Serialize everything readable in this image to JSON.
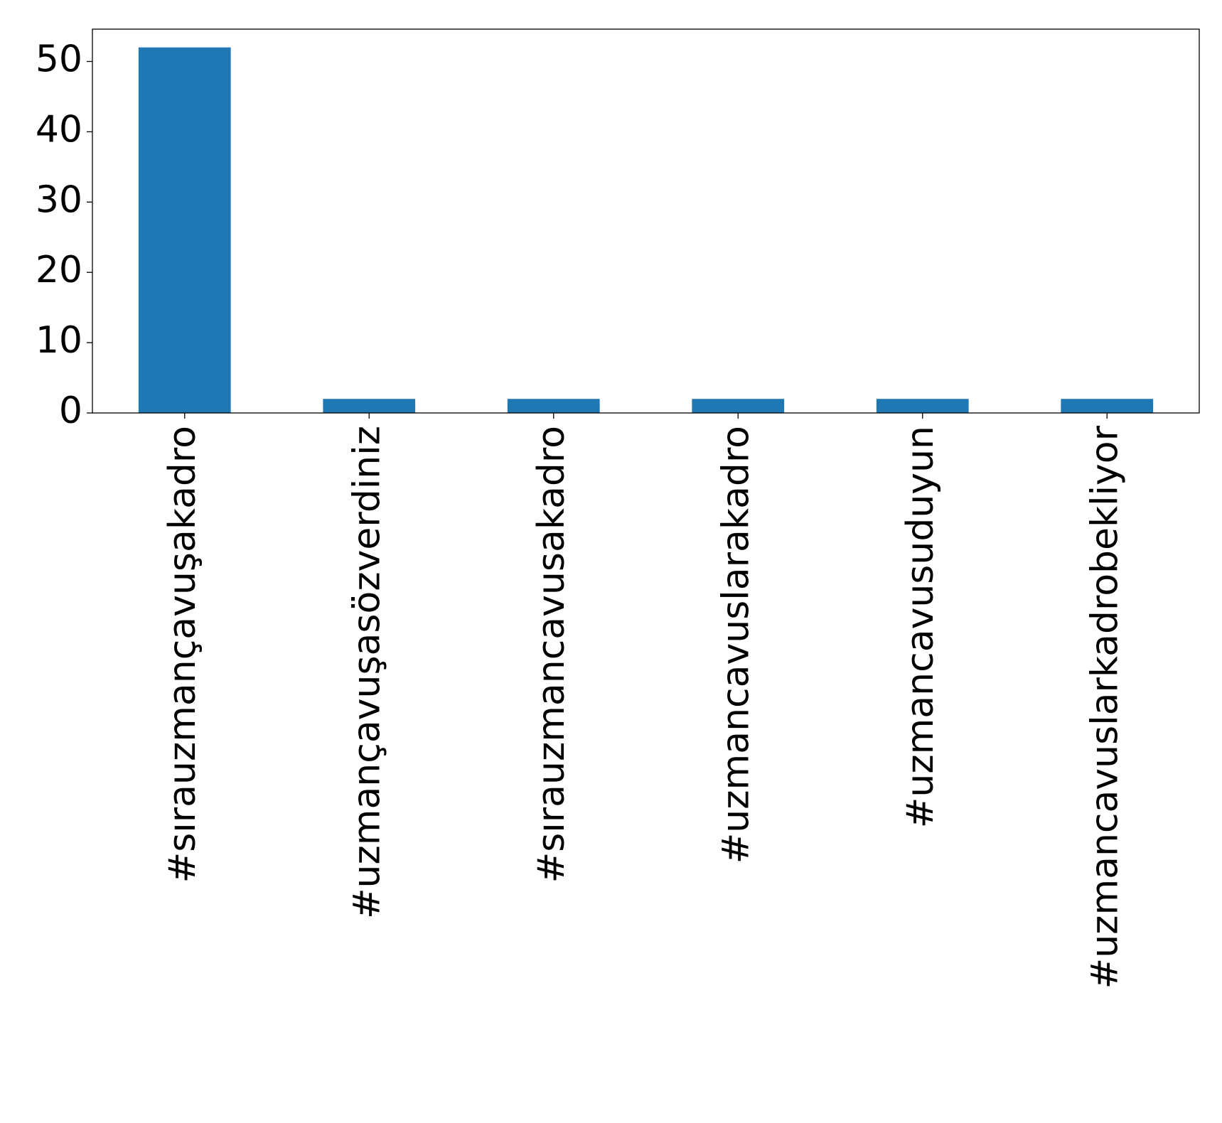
{
  "chart_data": {
    "type": "bar",
    "categories": [
      "#sırauzmançavuşakadro",
      "#uzmançavuşasözverdiniz",
      "#sırauzmancavusakadro",
      "#uzmancavuslarakadro",
      "#uzmancavusuduyun",
      "#uzmancavuslarkadrobekliyor"
    ],
    "values": [
      52,
      2,
      2,
      2,
      2,
      2
    ],
    "color": "#1f77b4",
    "ylim": [
      0,
      54.6
    ],
    "yticks": [
      0,
      10,
      20,
      30,
      40,
      50
    ],
    "grid": false
  }
}
